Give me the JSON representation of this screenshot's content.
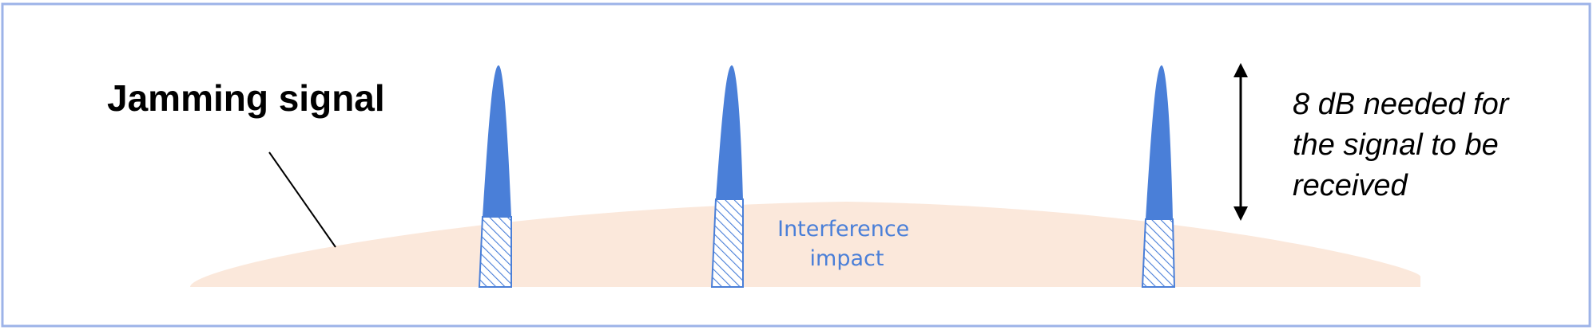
{
  "labels": {
    "jamming_signal": "Jamming signal",
    "requirement_lines": [
      "8 dB needed for",
      "the signal to be",
      "received"
    ],
    "interference_lines": [
      "Interference",
      "impact"
    ]
  },
  "colors": {
    "frame": "#9db3e8",
    "jamming": "#fbe8db",
    "signal": "#4a7fd8",
    "hatch": "#4a7fd8",
    "arrow": "#000000",
    "text": "#000000",
    "interference_text": "#4a7fd8"
  },
  "signals": [
    "signal-peak-1",
    "signal-peak-2",
    "signal-peak-3"
  ]
}
